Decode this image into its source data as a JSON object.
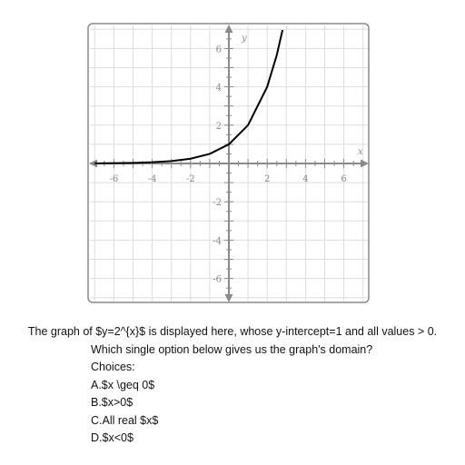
{
  "chart_data": {
    "type": "line",
    "function": "y=2^x",
    "xlim": [
      -7,
      7
    ],
    "ylim": [
      -7,
      7
    ],
    "grid": true,
    "xlabel": "x",
    "ylabel": "y",
    "x_ticks": [
      -6,
      -4,
      -2,
      2,
      4,
      6
    ],
    "y_ticks": [
      -6,
      -4,
      -2,
      2,
      4,
      6
    ],
    "x_tick_labels": [
      "-6",
      "-4",
      "-2",
      "2",
      "4",
      "6"
    ],
    "y_tick_labels": [
      "-6",
      "-4",
      "-2",
      "2",
      "4",
      "6"
    ],
    "series": [
      {
        "x": [
          -7,
          -6,
          -5,
          -4,
          -3,
          -2,
          -1,
          0,
          1,
          2,
          2.5,
          2.8
        ],
        "y": [
          0.0078,
          0.0156,
          0.03125,
          0.0625,
          0.125,
          0.25,
          0.5,
          1,
          2,
          4,
          5.657,
          6.964
        ]
      }
    ],
    "colors": {
      "curve": "#000000",
      "grid": "#dddddd",
      "axis": "#8a8a8a",
      "frame": "#8a8a8a"
    }
  },
  "question": {
    "stem": "The graph of $y=2^{x}$ is displayed here, whose y-intercept=1 and all values > 0.",
    "prompt": "Which single option below gives us the graph's domain?",
    "choices_label": "Choices:",
    "choices": [
      "A.$x \\geq 0$",
      "B.$x>0$",
      "C.All real $x$",
      "D.$x<0$"
    ]
  }
}
